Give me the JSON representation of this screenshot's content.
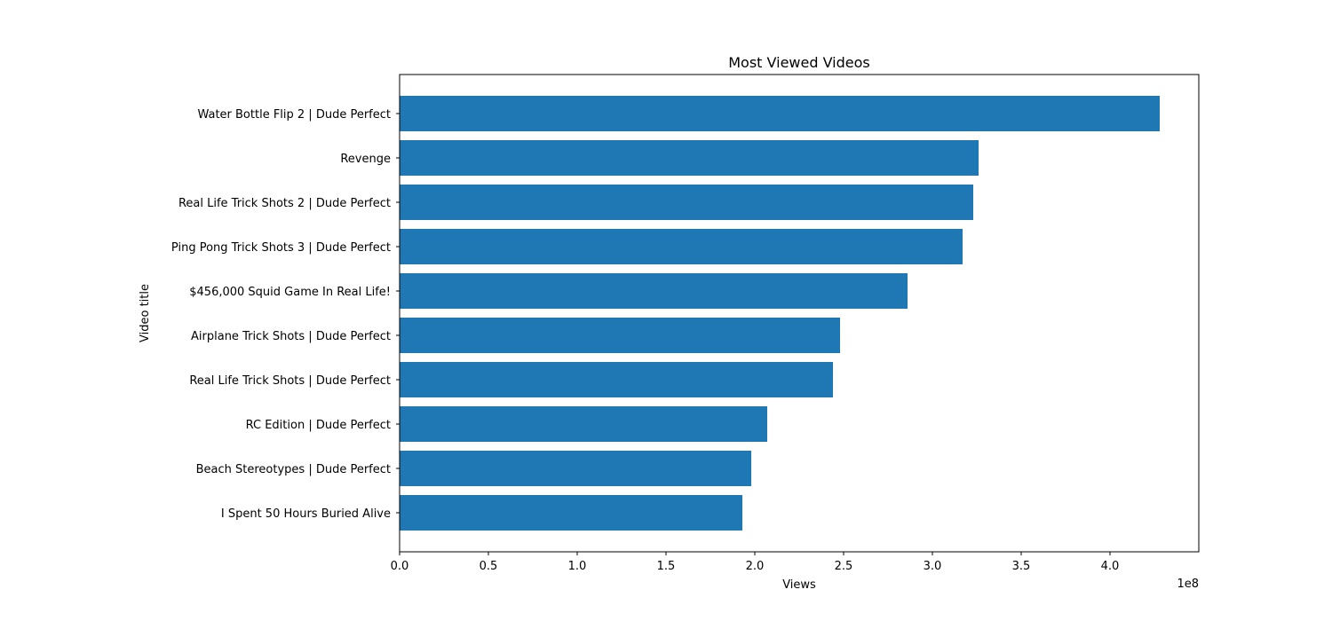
{
  "chart_data": {
    "type": "bar",
    "orientation": "horizontal",
    "title": "Most Viewed Videos",
    "xlabel": "Views",
    "ylabel": "Video title",
    "x_offset_label": "1e8",
    "xlim": [
      0,
      4.5
    ],
    "x_scale": 100000000,
    "x_ticks": [
      0.0,
      0.5,
      1.0,
      1.5,
      2.0,
      2.5,
      3.0,
      3.5,
      4.0
    ],
    "x_tick_labels": [
      "0.0",
      "0.5",
      "1.0",
      "1.5",
      "2.0",
      "2.5",
      "3.0",
      "3.5",
      "4.0"
    ],
    "grid": false,
    "bar_color": "#1f77b4",
    "categories": [
      "Water Bottle Flip 2 | Dude Perfect",
      "Revenge ",
      "Real Life Trick Shots 2 | Dude Perfect",
      "Ping Pong Trick Shots 3 | Dude Perfect",
      "$456,000 Squid Game In Real Life!",
      "Airplane Trick Shots | Dude Perfect",
      "Real Life Trick Shots | Dude Perfect",
      "RC Edition | Dude Perfect",
      "Beach Stereotypes | Dude Perfect",
      "I Spent 50 Hours Buried Alive"
    ],
    "values": [
      4.28,
      3.26,
      3.23,
      3.17,
      2.86,
      2.48,
      2.44,
      2.07,
      1.98,
      1.93
    ]
  }
}
